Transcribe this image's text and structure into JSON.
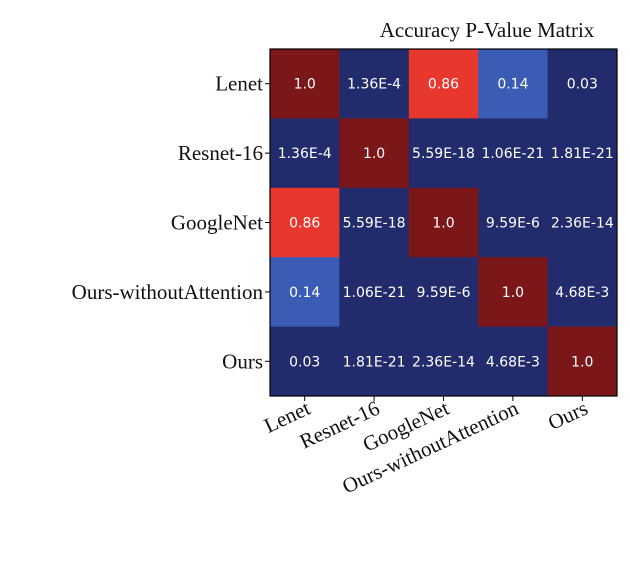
{
  "chart_data": {
    "type": "heatmap",
    "title": "Accuracy P-Value Matrix",
    "row_labels": [
      "Lenet",
      "Resnet-16",
      "GoogleNet",
      "Ours-withoutAttention",
      "Ours"
    ],
    "col_labels": [
      "Lenet",
      "Resnet-16",
      "GoogleNet",
      "Ours-withoutAttention",
      "Ours"
    ],
    "values": [
      [
        1.0,
        0.000136,
        0.86,
        0.14,
        0.03
      ],
      [
        0.000136,
        1.0,
        5.59e-18,
        1.06e-21,
        1.81e-21
      ],
      [
        0.86,
        5.59e-18,
        1.0,
        9.59e-06,
        2.36e-14
      ],
      [
        0.14,
        1.06e-21,
        9.59e-06,
        1.0,
        0.00468
      ],
      [
        0.03,
        1.81e-21,
        2.36e-14,
        0.00468,
        1.0
      ]
    ],
    "value_labels": [
      [
        "1.0",
        "1.36E-4",
        "0.86",
        "0.14",
        "0.03"
      ],
      [
        "1.36E-4",
        "1.0",
        "5.59E-18",
        "1.06E-21",
        "1.81E-21"
      ],
      [
        "0.86",
        "5.59E-18",
        "1.0",
        "9.59E-6",
        "2.36E-14"
      ],
      [
        "0.14",
        "1.06E-21",
        "9.59E-6",
        "1.0",
        "4.68E-3"
      ],
      [
        "0.03",
        "1.81E-21",
        "2.36E-14",
        "4.68E-3",
        "1.0"
      ]
    ],
    "cell_colors": [
      [
        "#7b1718",
        "#222c6c",
        "#e8382e",
        "#3b5cb4",
        "#222c6c"
      ],
      [
        "#222c6c",
        "#7b1718",
        "#222c6c",
        "#222c6c",
        "#222c6c"
      ],
      [
        "#e8382e",
        "#222c6c",
        "#7b1718",
        "#222c6c",
        "#222c6c"
      ],
      [
        "#3b5cb4",
        "#222c6c",
        "#222c6c",
        "#7b1718",
        "#222c6c"
      ],
      [
        "#222c6c",
        "#222c6c",
        "#222c6c",
        "#222c6c",
        "#7b1718"
      ]
    ],
    "xlabel": "",
    "ylabel": "",
    "grid": false
  }
}
